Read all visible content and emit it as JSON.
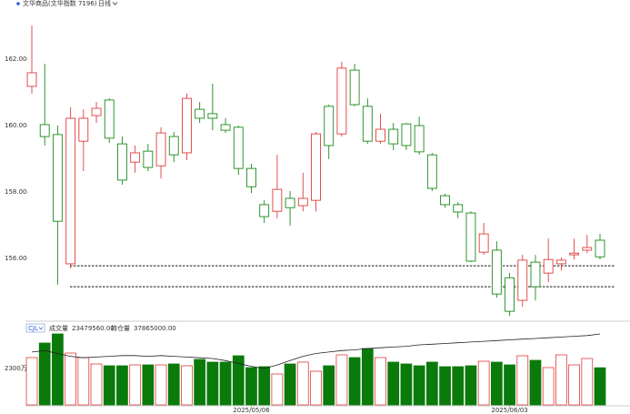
{
  "chart_data": {
    "type": "candlestick",
    "title": "文华商品(文华指数 7196)",
    "period": "日线",
    "categories": [
      null,
      null,
      null,
      null,
      null,
      null,
      null,
      null,
      null,
      null,
      null,
      null,
      null,
      null,
      null,
      null,
      null,
      "2025/05/06",
      null,
      null,
      null,
      null,
      null,
      null,
      null,
      null,
      null,
      null,
      null,
      null,
      null,
      null,
      null,
      null,
      null,
      null,
      null,
      "2025/06/03",
      null,
      null,
      null,
      null,
      null,
      null,
      null
    ],
    "open": [
      161.18,
      160.03,
      159.73,
      155.84,
      159.53,
      160.3,
      160.77,
      159.45,
      158.9,
      159.23,
      158.79,
      159.67,
      159.18,
      160.49,
      160.36,
      160.03,
      159.95,
      158.71,
      157.62,
      157.42,
      157.81,
      157.59,
      157.75,
      160.58,
      159.75,
      161.67,
      160.58,
      159.53,
      159.89,
      160.05,
      160.0,
      159.12,
      157.89,
      157.62,
      157.37,
      156.19,
      156.25,
      155.42,
      154.74,
      155.89,
      155.56,
      155.84,
      156.11,
      156.25,
      156.55
    ],
    "close": [
      161.59,
      159.67,
      157.12,
      160.22,
      160.22,
      160.52,
      159.62,
      158.36,
      159.18,
      158.74,
      159.78,
      159.12,
      160.82,
      160.22,
      160.22,
      159.86,
      158.71,
      158.16,
      157.26,
      158.08,
      157.53,
      157.81,
      159.75,
      159.4,
      161.73,
      160.63,
      159.53,
      159.89,
      159.45,
      159.4,
      159.21,
      158.11,
      157.62,
      157.4,
      155.92,
      156.74,
      154.93,
      154.41,
      155.95,
      155.15,
      155.97,
      155.95,
      156.16,
      156.33,
      156.05
    ],
    "high": [
      163.01,
      161.86,
      160.0,
      160.55,
      160.49,
      160.71,
      160.82,
      159.67,
      159.4,
      159.45,
      159.95,
      159.81,
      160.96,
      160.71,
      161.26,
      160.22,
      160.0,
      158.85,
      157.75,
      159.12,
      158.03,
      158.58,
      159.81,
      160.63,
      161.92,
      161.86,
      160.82,
      160.36,
      160.08,
      160.08,
      160.27,
      159.18,
      157.95,
      157.7,
      157.42,
      157.07,
      156.52,
      155.56,
      156.11,
      156.11,
      156.6,
      156.03,
      156.6,
      156.71,
      156.74
    ],
    "low": [
      160.96,
      159.4,
      155.21,
      155.7,
      158.63,
      160.08,
      159.48,
      158.22,
      158.58,
      158.63,
      158.41,
      158.9,
      158.96,
      160.08,
      159.86,
      159.78,
      158.52,
      157.97,
      157.07,
      157.21,
      156.99,
      157.42,
      157.42,
      158.99,
      159.67,
      160.58,
      159.45,
      159.45,
      159.26,
      159.26,
      159.12,
      158.03,
      157.53,
      157.21,
      155.89,
      156.11,
      154.82,
      154.27,
      154.55,
      154.74,
      155.29,
      155.64,
      155.97,
      156.16,
      155.97
    ],
    "up_color": "#e03c3c",
    "down_color": "#1a8a1a",
    "ylim": [
      154.14,
      163.78
    ],
    "yticks": [
      {
        "value": 156,
        "label": "156.00"
      },
      {
        "value": 158,
        "label": "158.00"
      },
      {
        "value": 160,
        "label": "160.00"
      },
      {
        "value": 162,
        "label": "162.00"
      }
    ],
    "hlines": [
      155.78,
      155.15
    ],
    "indicator": "CJL",
    "volume_legend": {
      "label": "成交量",
      "value_label": "23479560.00"
    },
    "oi_legend": {
      "label": "持仓量",
      "value_label": "37865000.00"
    },
    "volume": [
      29900000,
      39100000,
      44850000,
      32775000,
      29900000,
      25875000,
      24725000,
      24725000,
      25300000,
      25300000,
      25300000,
      25875000,
      24725000,
      28750000,
      27025000,
      27025000,
      31050000,
      23575000,
      24150000,
      19550000,
      25875000,
      27025000,
      21275000,
      24725000,
      31625000,
      29900000,
      35650000,
      29900000,
      27025000,
      25875000,
      24725000,
      27025000,
      24150000,
      24150000,
      24725000,
      27600000,
      27025000,
      25300000,
      31050000,
      28175000,
      23575000,
      31625000,
      25300000,
      29325000,
      23479560
    ],
    "volume_down_color": "#0a7a0a",
    "volume_ylim": [
      0,
      50600000
    ],
    "volume_yticks": [
      {
        "value": 23000000,
        "label": "2300万"
      }
    ],
    "open_interest": [
      36600000,
      36700000,
      36500000,
      36300000,
      36200000,
      36250000,
      36300000,
      36350000,
      36350000,
      36300000,
      36350000,
      36300000,
      36250000,
      36200000,
      36150000,
      36000000,
      35800000,
      35600000,
      35450000,
      35700000,
      36000000,
      36300000,
      36500000,
      36600000,
      36700000,
      36750000,
      36850000,
      36900000,
      36950000,
      37000000,
      37100000,
      37150000,
      37200000,
      37250000,
      37300000,
      37350000,
      37400000,
      37450000,
      37500000,
      37550000,
      37600000,
      37650000,
      37700000,
      37750000,
      37865000
    ],
    "oi_color": "#222222"
  }
}
